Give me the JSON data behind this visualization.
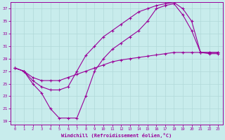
{
  "xlabel": "Windchill (Refroidissement éolien,°C)",
  "background_color": "#c8ecec",
  "grid_color": "#b0d8d8",
  "line_color": "#990099",
  "xlim": [
    -0.5,
    23.5
  ],
  "ylim": [
    18.5,
    38.0
  ],
  "yticks": [
    19,
    21,
    23,
    25,
    27,
    29,
    31,
    33,
    35,
    37
  ],
  "xticks": [
    0,
    1,
    2,
    3,
    4,
    5,
    6,
    7,
    8,
    9,
    10,
    11,
    12,
    13,
    14,
    15,
    16,
    17,
    18,
    19,
    20,
    21,
    22,
    23
  ],
  "line1_x": [
    0,
    1,
    2,
    3,
    4,
    5,
    6,
    7,
    8,
    9,
    10,
    11,
    12,
    13,
    14,
    15,
    16,
    17,
    18,
    19,
    20,
    21,
    22,
    23
  ],
  "line1_y": [
    27.5,
    27.0,
    25.0,
    23.5,
    21.0,
    19.5,
    19.5,
    19.5,
    23.0,
    27.0,
    29.0,
    30.5,
    31.5,
    32.5,
    33.5,
    35.0,
    37.0,
    37.5,
    37.8,
    36.0,
    33.5,
    30.0,
    29.8,
    29.8
  ],
  "line2_x": [
    0,
    1,
    2,
    3,
    4,
    5,
    6,
    7,
    8,
    9,
    10,
    11,
    12,
    13,
    14,
    15,
    16,
    17,
    18,
    19,
    20,
    21,
    22,
    23
  ],
  "line2_y": [
    27.5,
    27.0,
    26.0,
    25.5,
    25.5,
    25.5,
    26.0,
    26.5,
    27.0,
    27.5,
    28.0,
    28.5,
    28.8,
    29.0,
    29.2,
    29.4,
    29.6,
    29.8,
    30.0,
    30.0,
    30.0,
    30.0,
    30.0,
    30.0
  ],
  "line3_x": [
    0,
    1,
    2,
    3,
    4,
    5,
    6,
    7,
    8,
    9,
    10,
    11,
    12,
    13,
    14,
    15,
    16,
    17,
    18,
    19,
    20,
    21,
    22,
    23
  ],
  "line3_y": [
    27.5,
    27.0,
    25.5,
    24.5,
    24.0,
    24.0,
    24.5,
    27.0,
    29.5,
    31.0,
    32.5,
    33.5,
    34.5,
    35.5,
    36.5,
    37.0,
    37.5,
    37.8,
    38.0,
    37.0,
    35.0,
    30.0,
    30.0,
    30.0
  ]
}
